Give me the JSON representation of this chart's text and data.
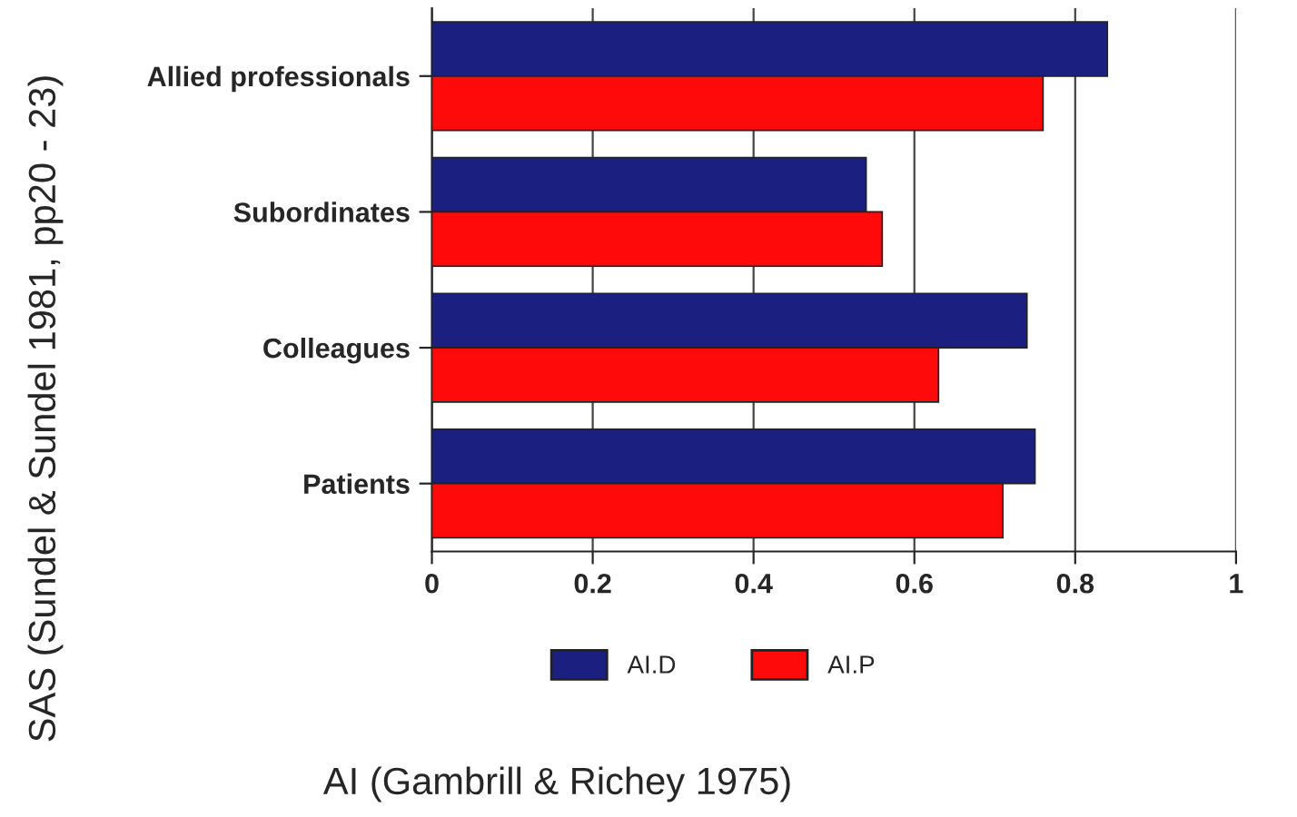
{
  "chart_data": {
    "type": "bar",
    "orientation": "horizontal",
    "xlabel": "AI (Gambrill & Richey 1975)",
    "ylabel": "SAS (Sundel & Sundel 1981, pp20 - 23)",
    "categories": [
      "Allied professionals",
      "Subordinates",
      "Colleagues",
      "Patients"
    ],
    "series": [
      {
        "name": "AI.D",
        "color": "#1a1f80",
        "values": [
          0.84,
          0.54,
          0.74,
          0.75
        ]
      },
      {
        "name": "AI.P",
        "color": "#ff0a0a",
        "values": [
          0.76,
          0.56,
          0.63,
          0.71
        ]
      }
    ],
    "xlim": [
      0,
      1
    ],
    "xticks": [
      0,
      0.2,
      0.4,
      0.6,
      0.8,
      1
    ],
    "grid": "x",
    "legend": "bottom"
  }
}
